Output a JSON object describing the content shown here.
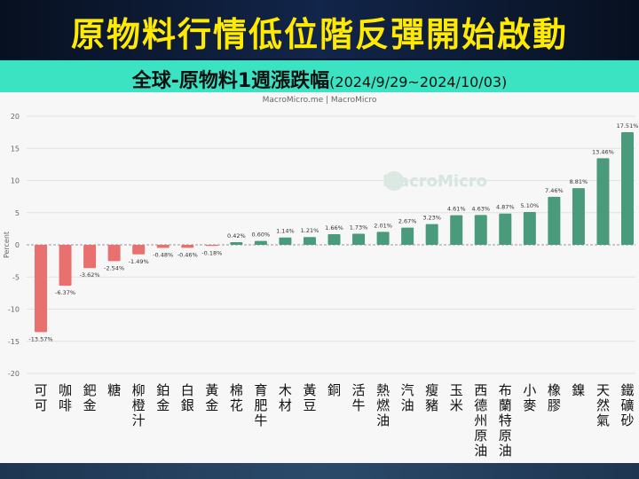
{
  "banner": {
    "title": "原物料行情低位階反彈開始啟動"
  },
  "header": {
    "title": "全球-原物料1週漲跌幅",
    "date_range": "(2024/9/29~2024/10/03)"
  },
  "credit": "MacroMicro.me | MacroMicro",
  "watermark": "MacroMicro",
  "colors": {
    "negative": "#e8706e",
    "positive": "#4a9a7c",
    "teal": "#3be3c3",
    "banner_text": "#ffea00"
  },
  "chart_data": {
    "type": "bar",
    "title": "全球-原物料1週漲跌幅",
    "ylabel": "Percent",
    "ylim": [
      -20,
      20
    ],
    "yticks": [
      20,
      15,
      10,
      5,
      0,
      -5,
      -10,
      -15,
      -20
    ],
    "grid": true,
    "categories": [
      "可可",
      "咖啡",
      "鈀金",
      "糖",
      "柳橙汁",
      "鉑金",
      "白銀",
      "黃金",
      "棉花",
      "育肥牛",
      "木材",
      "黃豆",
      "銅",
      "活牛",
      "熱燃油",
      "汽油",
      "瘦豬",
      "玉米",
      "西德州原油",
      "布蘭特原油",
      "小麥",
      "橡膠",
      "鎳",
      "天然氣",
      "鐵礦砂"
    ],
    "values": [
      -13.57,
      -6.37,
      -3.62,
      -2.54,
      -1.49,
      -0.48,
      -0.46,
      -0.18,
      0.42,
      0.6,
      1.14,
      1.21,
      1.66,
      1.73,
      2.01,
      2.67,
      3.23,
      4.61,
      4.63,
      4.87,
      5.1,
      7.46,
      8.81,
      13.46,
      17.51
    ],
    "labels": [
      "-13.57%",
      "-6.37%",
      "-3.62%",
      "-2.54%",
      "-1.49%",
      "-0.48%",
      "-0.46%",
      "-0.18%",
      "0.42%",
      "0.60%",
      "1.14%",
      "1.21%",
      "1.66%",
      "1.73%",
      "2.01%",
      "2.67%",
      "3.23%",
      "4.61%",
      "4.63%",
      "4.87%",
      "5.10%",
      "7.46%",
      "8.81%",
      "13.46%",
      "17.51%"
    ]
  }
}
